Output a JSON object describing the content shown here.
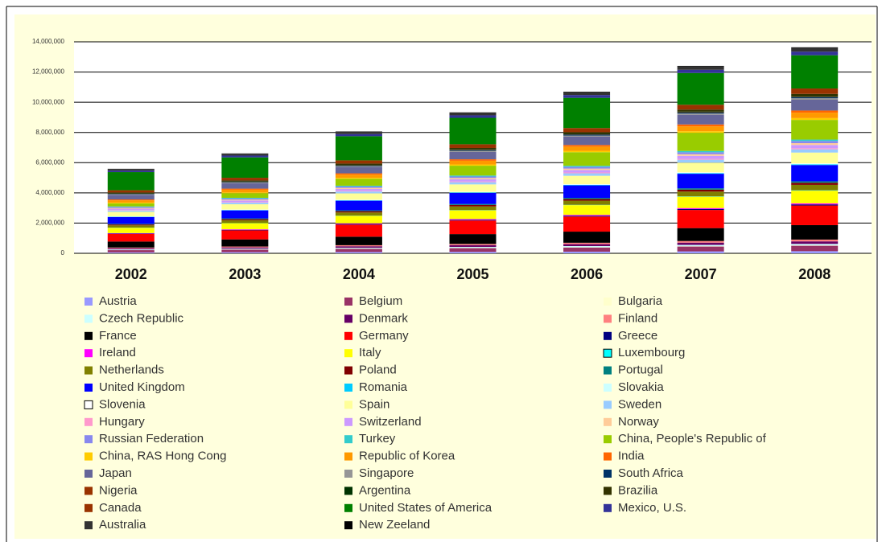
{
  "chart_data": {
    "type": "stacked_bar",
    "categories": [
      "2002",
      "2003",
      "2004",
      "2005",
      "2006",
      "2007",
      "2008"
    ],
    "ylim": [
      0,
      14000000
    ],
    "yticks": [
      0,
      {
        "value": 2000000,
        "label": "2,000,000"
      },
      {
        "value": 4000000,
        "label": "4,000,000"
      },
      {
        "value": 6000000,
        "label": "6,000,000"
      },
      {
        "value": 8000000,
        "label": "8,000,000"
      },
      {
        "value": 10000000,
        "label": "10,000,000"
      },
      {
        "value": 12000000,
        "label": "12,000,000"
      },
      {
        "value": 14000000,
        "label": "14,000,000"
      }
    ],
    "grid": true,
    "series": [
      {
        "name": "Austria",
        "color": "#9999ff",
        "values": [
          60000,
          71000,
          85000,
          98000,
          110000,
          128000,
          143000
        ]
      },
      {
        "name": "Belgium",
        "color": "#993366",
        "values": [
          150000,
          177000,
          212000,
          245000,
          276000,
          321000,
          359000
        ]
      },
      {
        "name": "Bulgaria",
        "color": "#ffffcc",
        "values": [
          10000,
          12000,
          14000,
          16000,
          18000,
          21000,
          24000
        ]
      },
      {
        "name": "Czech Republic",
        "color": "#ccffff",
        "values": [
          40000,
          47000,
          56000,
          65000,
          74000,
          86000,
          96000
        ]
      },
      {
        "name": "Denmark",
        "color": "#660066",
        "values": [
          70000,
          83000,
          99000,
          114000,
          129000,
          150000,
          167000
        ]
      },
      {
        "name": "Finland",
        "color": "#ff8080",
        "values": [
          50000,
          59000,
          71000,
          82000,
          92000,
          107000,
          120000
        ]
      },
      {
        "name": "France",
        "color": "#000000",
        "values": [
          400000,
          472000,
          564000,
          652000,
          736000,
          856000,
          956000
        ]
      },
      {
        "name": "Germany",
        "color": "#ff0000",
        "values": [
          500000,
          600000,
          800000,
          900000,
          1000000,
          1200000,
          1300000
        ]
      },
      {
        "name": "Greece",
        "color": "#000080",
        "values": [
          30000,
          35000,
          42000,
          49000,
          55000,
          64000,
          72000
        ]
      },
      {
        "name": "Ireland",
        "color": "#ff00ff",
        "values": [
          30000,
          35000,
          42000,
          49000,
          55000,
          64000,
          72000
        ]
      },
      {
        "name": "Italy",
        "color": "#ffff00",
        "values": [
          350000,
          413000,
          494000,
          571000,
          644000,
          749000,
          837000
        ]
      },
      {
        "name": "Luxembourg",
        "color": "#00ffff",
        "values": [
          10000,
          12000,
          14000,
          16000,
          18000,
          21000,
          24000
        ]
      },
      {
        "name": "Netherlands",
        "color": "#808000",
        "values": [
          150000,
          177000,
          212000,
          245000,
          276000,
          321000,
          359000
        ]
      },
      {
        "name": "Poland",
        "color": "#800000",
        "values": [
          60000,
          71000,
          85000,
          98000,
          110000,
          128000,
          143000
        ]
      },
      {
        "name": "Portugal",
        "color": "#008080",
        "values": [
          40000,
          47000,
          56000,
          65000,
          74000,
          86000,
          96000
        ]
      },
      {
        "name": "United Kingdom",
        "color": "#0000ff",
        "values": [
          450000,
          531000,
          635000,
          734000,
          828000,
          963000,
          1076000
        ]
      },
      {
        "name": "Romania",
        "color": "#00ccff",
        "values": [
          20000,
          24000,
          28000,
          33000,
          37000,
          43000,
          48000
        ]
      },
      {
        "name": "Slovakia",
        "color": "#ccffff",
        "values": [
          15000,
          18000,
          21000,
          24000,
          28000,
          32000,
          36000
        ]
      },
      {
        "name": "Slovenia",
        "color": "#ffffff",
        "values": [
          10000,
          12000,
          14000,
          16000,
          18000,
          21000,
          24000
        ]
      },
      {
        "name": "Spain",
        "color": "#ffff99",
        "values": [
          300000,
          354000,
          423000,
          489000,
          552000,
          642000,
          717000
        ]
      },
      {
        "name": "Sweden",
        "color": "#99ccff",
        "values": [
          90000,
          106000,
          127000,
          147000,
          166000,
          193000,
          215000
        ]
      },
      {
        "name": "Hungary",
        "color": "#ff99cc",
        "values": [
          30000,
          35000,
          42000,
          49000,
          55000,
          64000,
          72000
        ]
      },
      {
        "name": "Switzerland",
        "color": "#cc99ff",
        "values": [
          90000,
          106000,
          127000,
          147000,
          166000,
          193000,
          215000
        ]
      },
      {
        "name": "Norway",
        "color": "#ffcc99",
        "values": [
          50000,
          59000,
          71000,
          82000,
          92000,
          107000,
          120000
        ]
      },
      {
        "name": "Russian Federation",
        "color": "#8888ee",
        "values": [
          60000,
          71000,
          85000,
          98000,
          110000,
          128000,
          143000
        ]
      },
      {
        "name": "Turkey",
        "color": "#33cccc",
        "values": [
          40000,
          47000,
          56000,
          65000,
          74000,
          86000,
          96000
        ]
      },
      {
        "name": "China, People's Republic of",
        "color": "#99cc00",
        "values": [
          200000,
          300000,
          450000,
          650000,
          900000,
          1200000,
          1300000
        ]
      },
      {
        "name": "China, RAS Hong Cong",
        "color": "#ffcc00",
        "values": [
          50000,
          59000,
          71000,
          82000,
          92000,
          107000,
          120000
        ]
      },
      {
        "name": "Republic of Korea",
        "color": "#ff9900",
        "values": [
          150000,
          177000,
          212000,
          245000,
          276000,
          321000,
          359000
        ]
      },
      {
        "name": "India",
        "color": "#ff6600",
        "values": [
          60000,
          71000,
          85000,
          98000,
          110000,
          128000,
          143000
        ]
      },
      {
        "name": "Japan",
        "color": "#666699",
        "values": [
          300000,
          354000,
          423000,
          489000,
          552000,
          642000,
          717000
        ]
      },
      {
        "name": "Singapore",
        "color": "#969696",
        "values": [
          40000,
          47000,
          56000,
          65000,
          74000,
          86000,
          96000
        ]
      },
      {
        "name": "South Africa",
        "color": "#003366",
        "values": [
          30000,
          35000,
          42000,
          49000,
          55000,
          64000,
          72000
        ]
      },
      {
        "name": "Nigeria",
        "color": "#993300",
        "values": [
          10000,
          12000,
          14000,
          16000,
          18000,
          21000,
          24000
        ]
      },
      {
        "name": "Argentina",
        "color": "#003300",
        "values": [
          20000,
          24000,
          28000,
          33000,
          37000,
          43000,
          48000
        ]
      },
      {
        "name": "Brazilia",
        "color": "#333300",
        "values": [
          60000,
          71000,
          85000,
          98000,
          110000,
          128000,
          143000
        ]
      },
      {
        "name": "Canada",
        "color": "#993300",
        "values": [
          150000,
          177000,
          212000,
          245000,
          276000,
          321000,
          359000
        ]
      },
      {
        "name": "United States of  America",
        "color": "#008000",
        "values": [
          1200000,
          1350000,
          1600000,
          1750000,
          2000000,
          2100000,
          2200000
        ]
      },
      {
        "name": "Mexico, U.S.",
        "color": "#333399",
        "values": [
          100000,
          118000,
          141000,
          163000,
          184000,
          214000,
          239000
        ]
      },
      {
        "name": "Australia",
        "color": "#333333",
        "values": [
          100000,
          118000,
          141000,
          163000,
          184000,
          214000,
          239000
        ]
      },
      {
        "name": "New Zeeland",
        "color": "#000000",
        "values": [
          20000,
          24000,
          28000,
          33000,
          37000,
          43000,
          48000
        ]
      }
    ]
  }
}
